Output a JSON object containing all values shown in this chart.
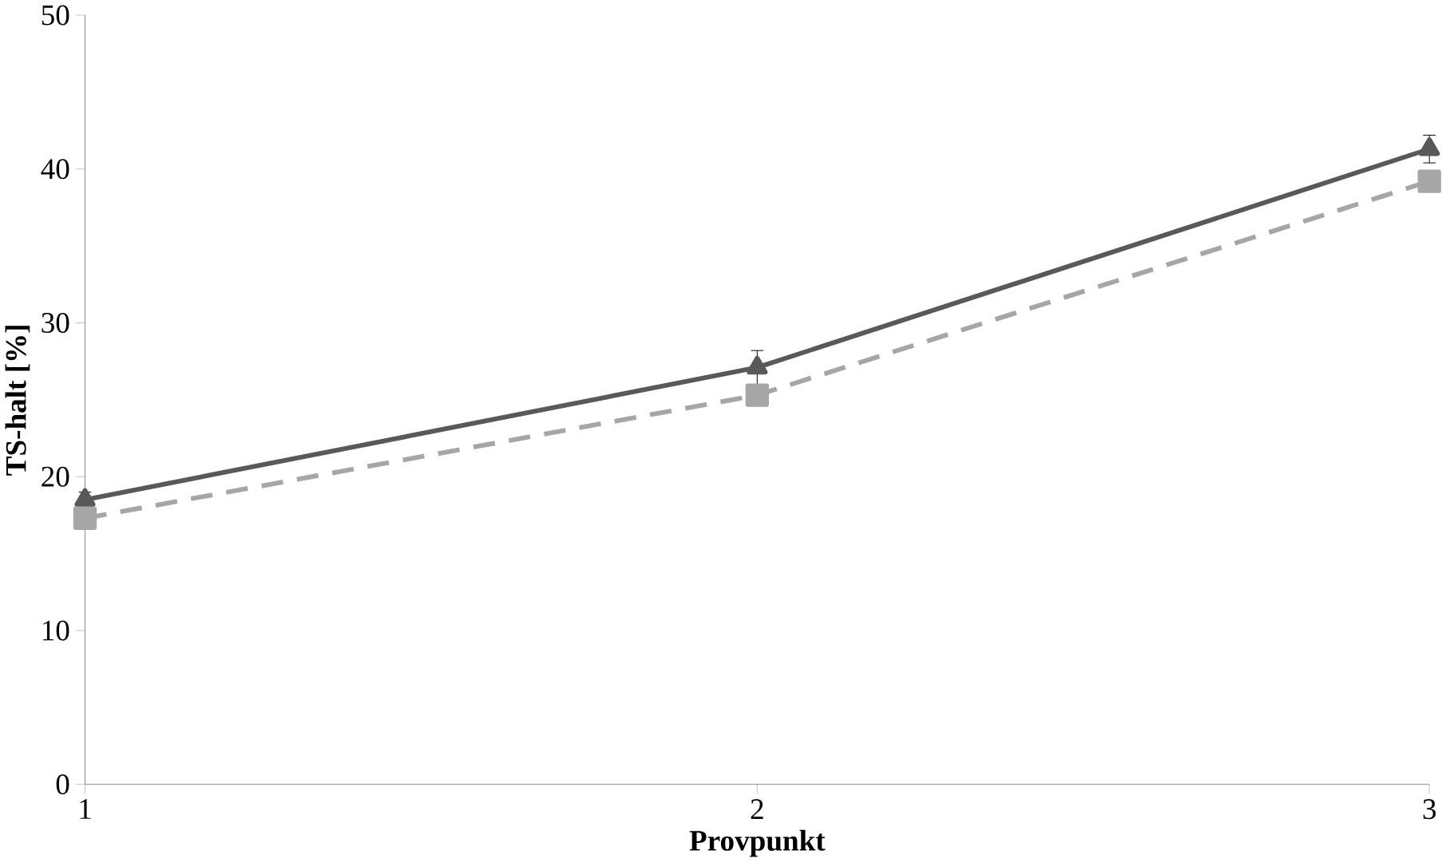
{
  "chart_data": {
    "type": "line",
    "xlabel": "Provpunkt",
    "ylabel": "TS-halt [%]",
    "x": [
      1,
      2,
      3
    ],
    "xlim": [
      1,
      3
    ],
    "xticks": [
      1,
      2,
      3
    ],
    "ylim": [
      0,
      50
    ],
    "yticks": [
      0,
      10,
      20,
      30,
      40,
      50
    ],
    "grid": false,
    "series": [
      {
        "color": "#595959",
        "values": [
          18.5,
          27.1,
          41.3
        ],
        "errors": [
          0.5,
          1.1,
          0.9
        ],
        "marker": "triangle",
        "line_style": "solid"
      },
      {
        "color": "#a6a6a6",
        "values": [
          17.3,
          25.3,
          39.2
        ],
        "marker": "square",
        "line_style": "dashed"
      }
    ]
  }
}
